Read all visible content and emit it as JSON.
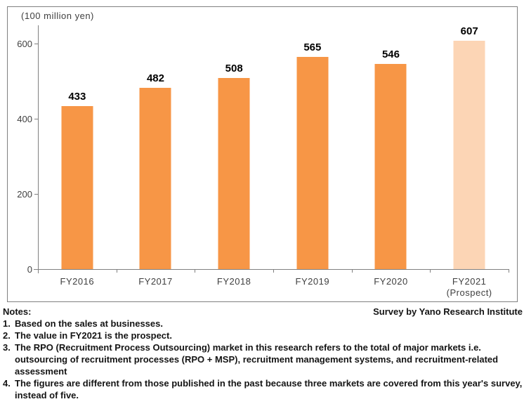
{
  "chart_data": {
    "type": "bar",
    "title": "",
    "categories": [
      "FY2016",
      "FY2017",
      "FY2018",
      "FY2019",
      "FY2020",
      "FY2021"
    ],
    "category_sublabels": [
      "",
      "",
      "",
      "",
      "",
      "(Prospect)"
    ],
    "values": [
      433,
      482,
      508,
      565,
      546,
      607
    ],
    "ylabel": "(100 million yen)",
    "xlabel": "",
    "ylim": [
      0,
      600
    ],
    "yticks": [
      0,
      200,
      400,
      600
    ],
    "grid": false,
    "legend": "none",
    "bar_color": "#F79646",
    "prospect_index": 5,
    "prospect_bar_color": "#FCD5B5",
    "axis_color": "#808080",
    "tick_label_color": "#404040",
    "value_label_color": "#000000"
  },
  "notes": {
    "heading": "Notes:",
    "source": "Survey by Yano Research Institute",
    "items": [
      {
        "num": "1.",
        "text": "Based on the sales at businesses."
      },
      {
        "num": "2.",
        "text": "The value in FY2021 is the prospect."
      },
      {
        "num": "3.",
        "text": "The RPO (Recruitment Process Outsourcing) market in this research refers to the total of major markets i.e. outsourcing of recruitment processes (RPO + MSP), recruitment management systems, and recruitment-related assessment"
      },
      {
        "num": "4.",
        "text": "The figures are different from those published in the past because three markets are covered from this year's survey, instead of five."
      }
    ]
  }
}
